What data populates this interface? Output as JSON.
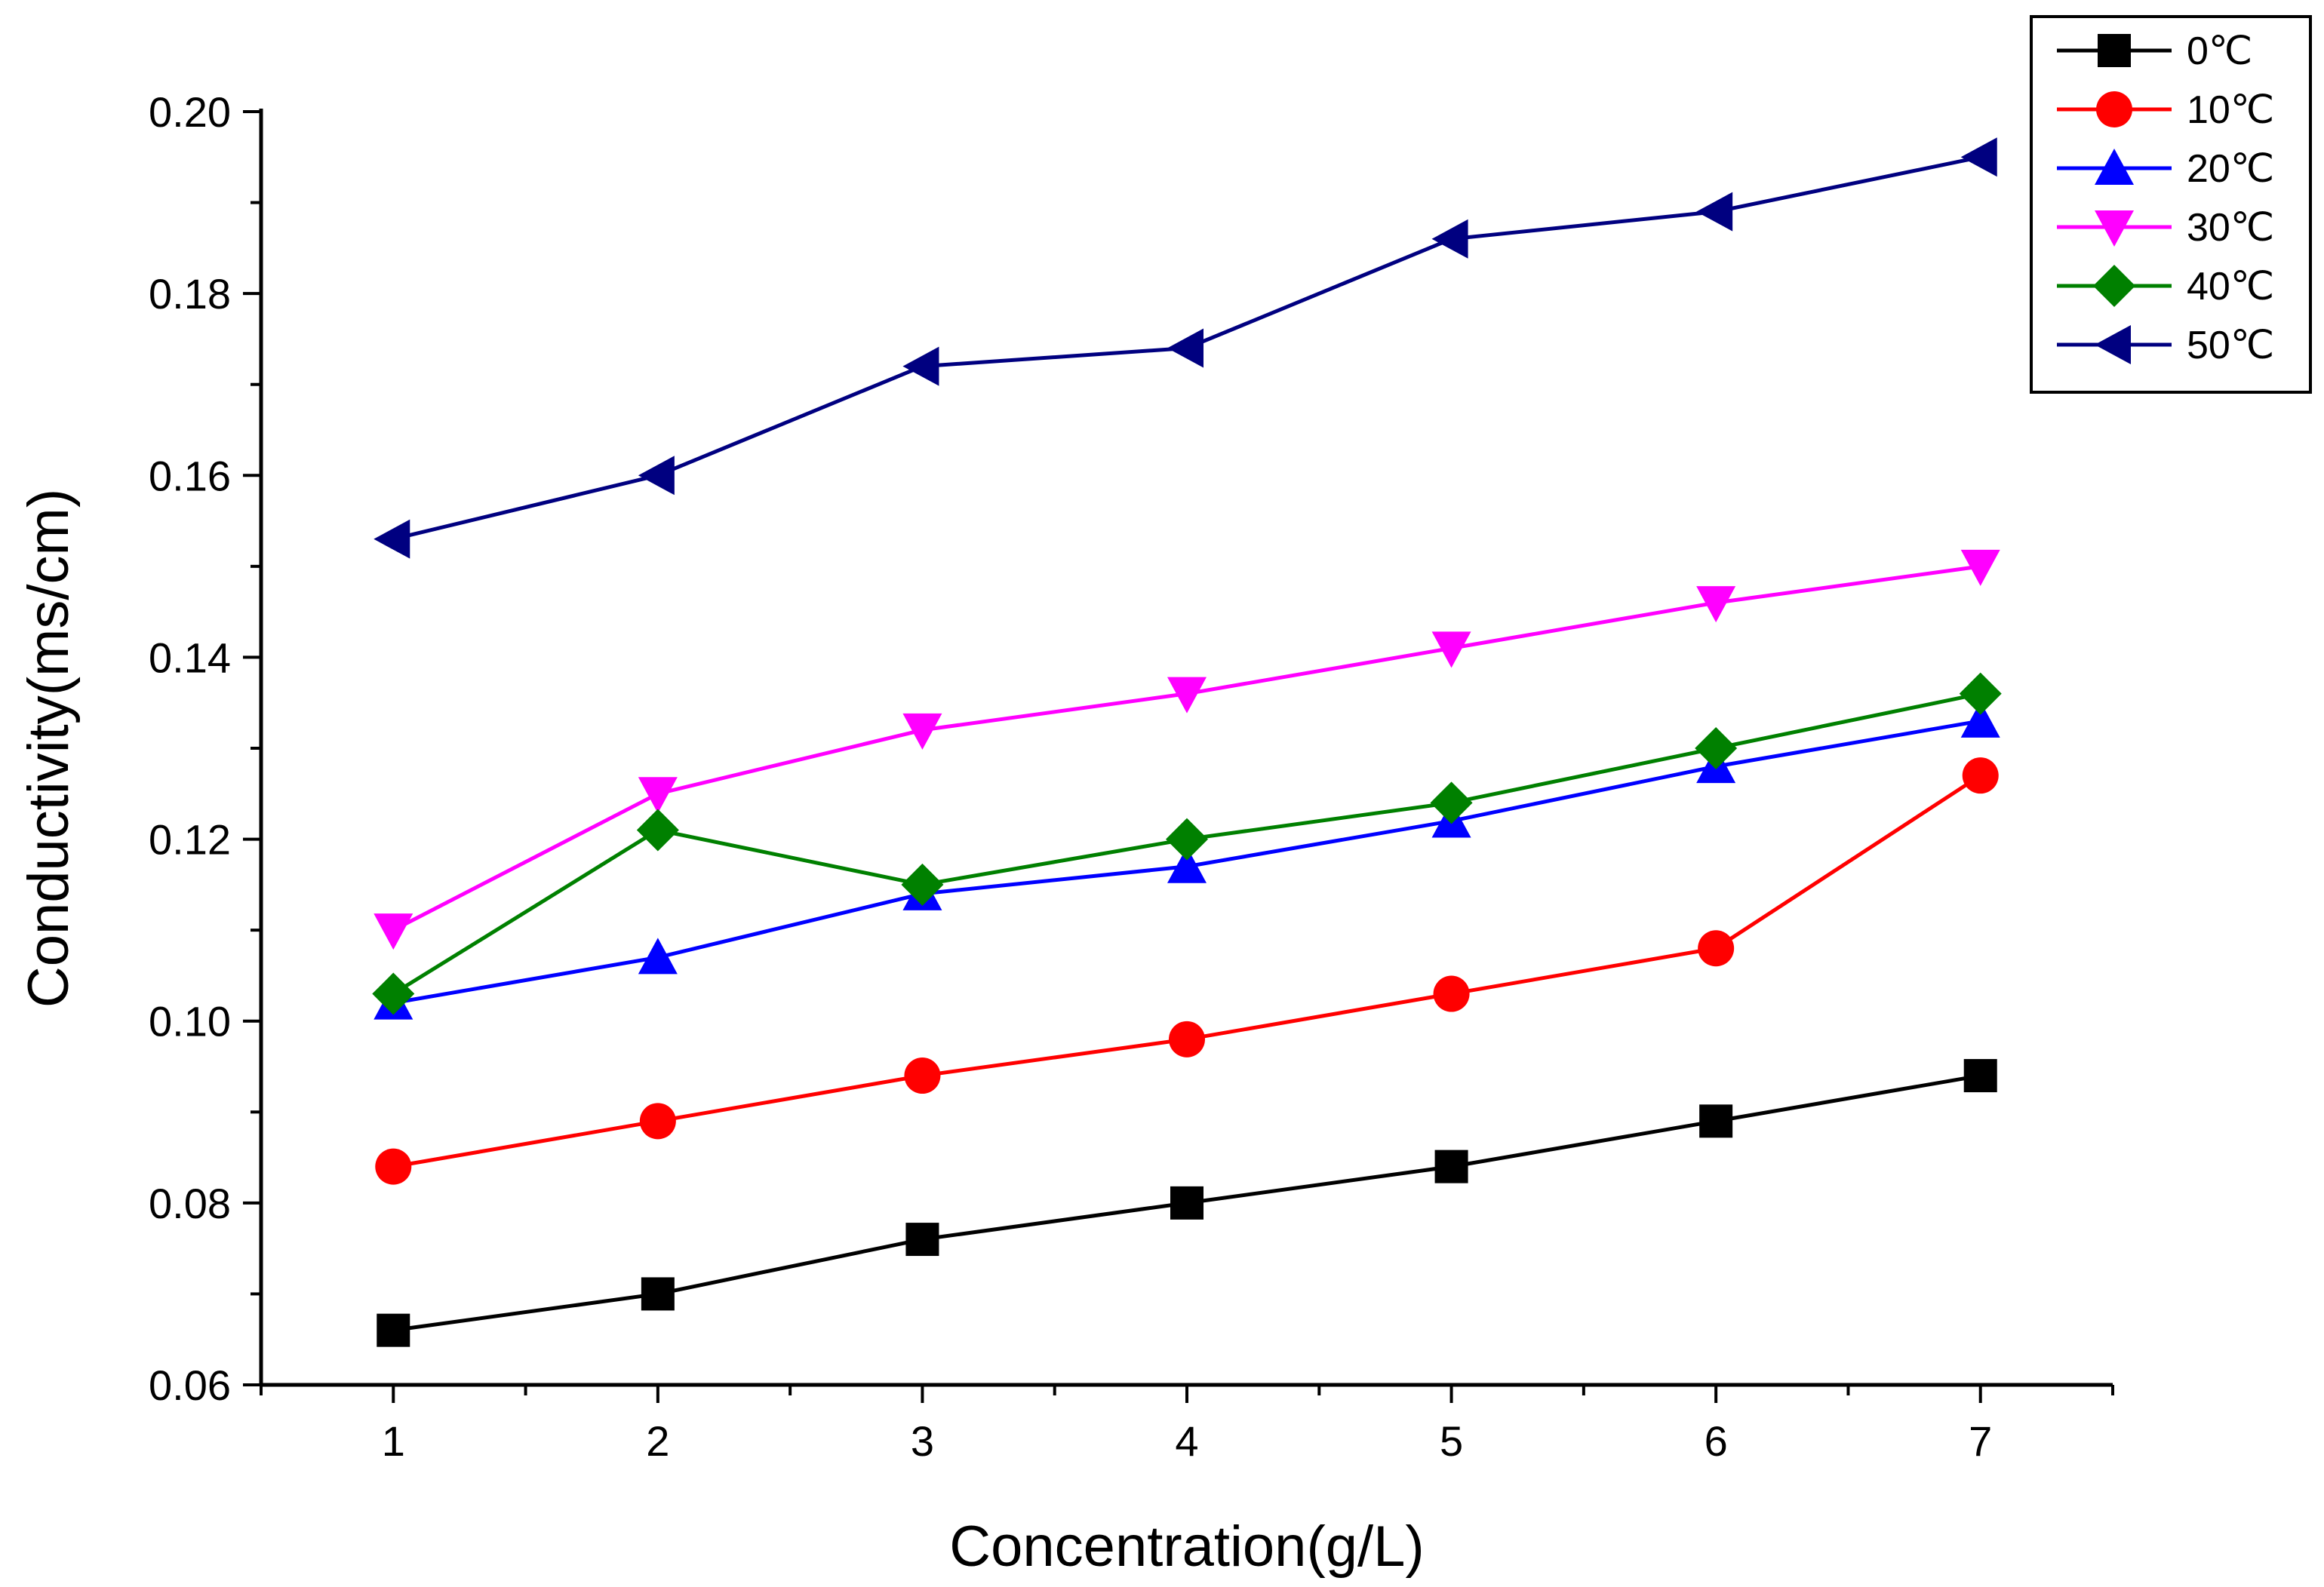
{
  "chart_data": {
    "type": "line",
    "title": "",
    "xlabel": "Concentration(g/L)",
    "ylabel": "Conductivity(ms/cm)",
    "x": [
      1,
      2,
      3,
      4,
      5,
      6,
      7
    ],
    "x_tick_labels": [
      "1",
      "2",
      "3",
      "4",
      "5",
      "6",
      "7"
    ],
    "y_tick_labels": [
      "0.06",
      "0.08",
      "0.10",
      "0.12",
      "0.14",
      "0.16",
      "0.18",
      "0.20"
    ],
    "xlim": [
      0.5,
      7.5
    ],
    "ylim": [
      0.06,
      0.2
    ],
    "legend_position": "top-right",
    "grid": false,
    "series": [
      {
        "name": "0℃",
        "color": "#000000",
        "marker": "square",
        "values": [
          0.066,
          0.07,
          0.076,
          0.08,
          0.084,
          0.089,
          0.094
        ]
      },
      {
        "name": "10℃",
        "color": "#ff0000",
        "marker": "circle",
        "values": [
          0.084,
          0.089,
          0.094,
          0.098,
          0.103,
          0.108,
          0.127
        ]
      },
      {
        "name": "20℃",
        "color": "#0000ff",
        "marker": "triangle-up",
        "values": [
          0.102,
          0.107,
          0.114,
          0.117,
          0.122,
          0.128,
          0.133
        ]
      },
      {
        "name": "30℃",
        "color": "#ff00ff",
        "marker": "triangle-down",
        "values": [
          0.11,
          0.125,
          0.132,
          0.136,
          0.141,
          0.146,
          0.15
        ]
      },
      {
        "name": "40℃",
        "color": "#008000",
        "marker": "diamond",
        "values": [
          0.103,
          0.121,
          0.115,
          0.12,
          0.124,
          0.13,
          0.136
        ]
      },
      {
        "name": "50℃",
        "color": "#000080",
        "marker": "triangle-left",
        "values": [
          0.153,
          0.16,
          0.172,
          0.174,
          0.186,
          0.189,
          0.195
        ]
      }
    ]
  }
}
